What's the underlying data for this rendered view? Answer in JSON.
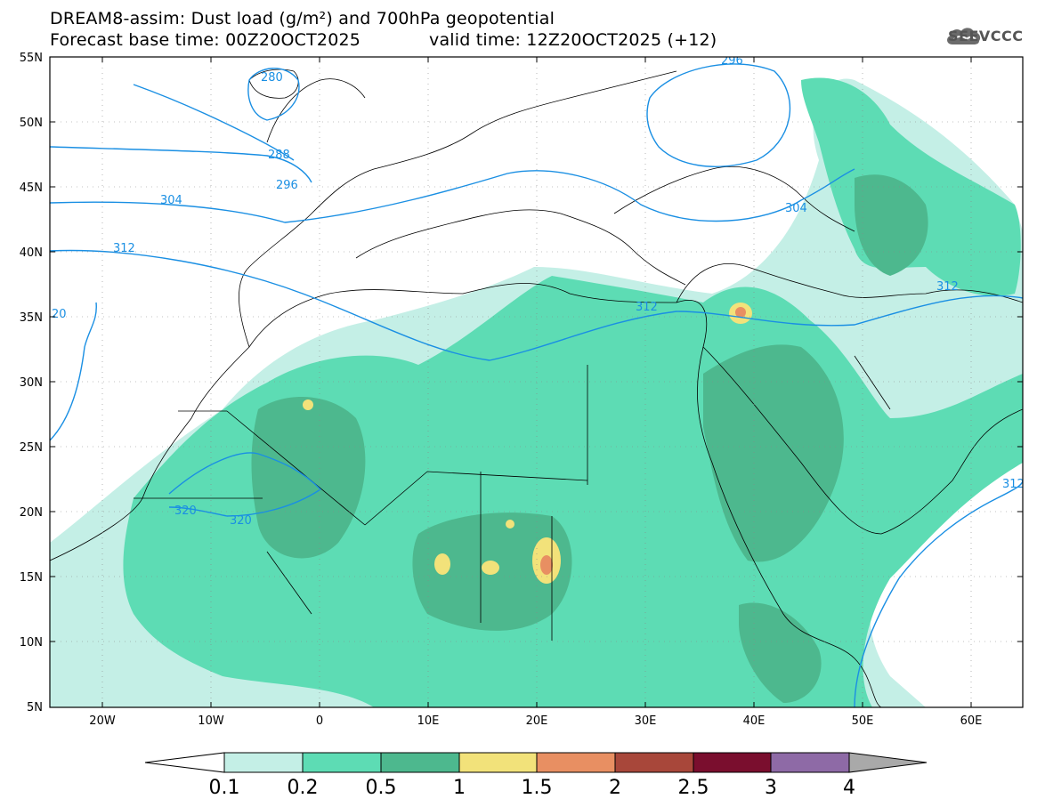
{
  "header": {
    "title_line_1": "DREAM8-assim: Dust load (g/m²) and 700hPa geopotential",
    "title_line_2": "Forecast base time: 00Z20OCT2025",
    "valid_time": "valid time: 12Z20OCT2025 (+12)"
  },
  "logo": {
    "text": "SEEVCCC",
    "icon": "cloud-logo-icon"
  },
  "map": {
    "lat_ticks": [
      "55N",
      "50N",
      "45N",
      "40N",
      "35N",
      "30N",
      "25N",
      "20N",
      "15N",
      "10N",
      "5N"
    ],
    "lon_ticks": [
      "20W",
      "10W",
      "0",
      "10E",
      "20E",
      "30E",
      "40E",
      "50E",
      "60E"
    ],
    "contour_labels": [
      "280",
      "288",
      "296",
      "304",
      "312",
      "304",
      "296",
      "312",
      "312",
      "320",
      "320",
      "312",
      "20"
    ]
  },
  "colorbar": {
    "labels": [
      "0.1",
      "0.2",
      "0.5",
      "1",
      "1.5",
      "2",
      "2.5",
      "3",
      "4"
    ],
    "colors": [
      "#c4efe6",
      "#5ddcb4",
      "#4db88e",
      "#f2e27a",
      "#e88f62",
      "#a8473a",
      "#7a0e2e",
      "#8e6aa6",
      "#a9a9a9"
    ]
  },
  "palette": {
    "level_0_1": "#c4efe6",
    "level_0_2": "#5ddcb4",
    "level_0_5": "#4db88e",
    "level_1": "#f2e27a",
    "level_1_5": "#e88f62",
    "contour": "#1a8fe3"
  }
}
